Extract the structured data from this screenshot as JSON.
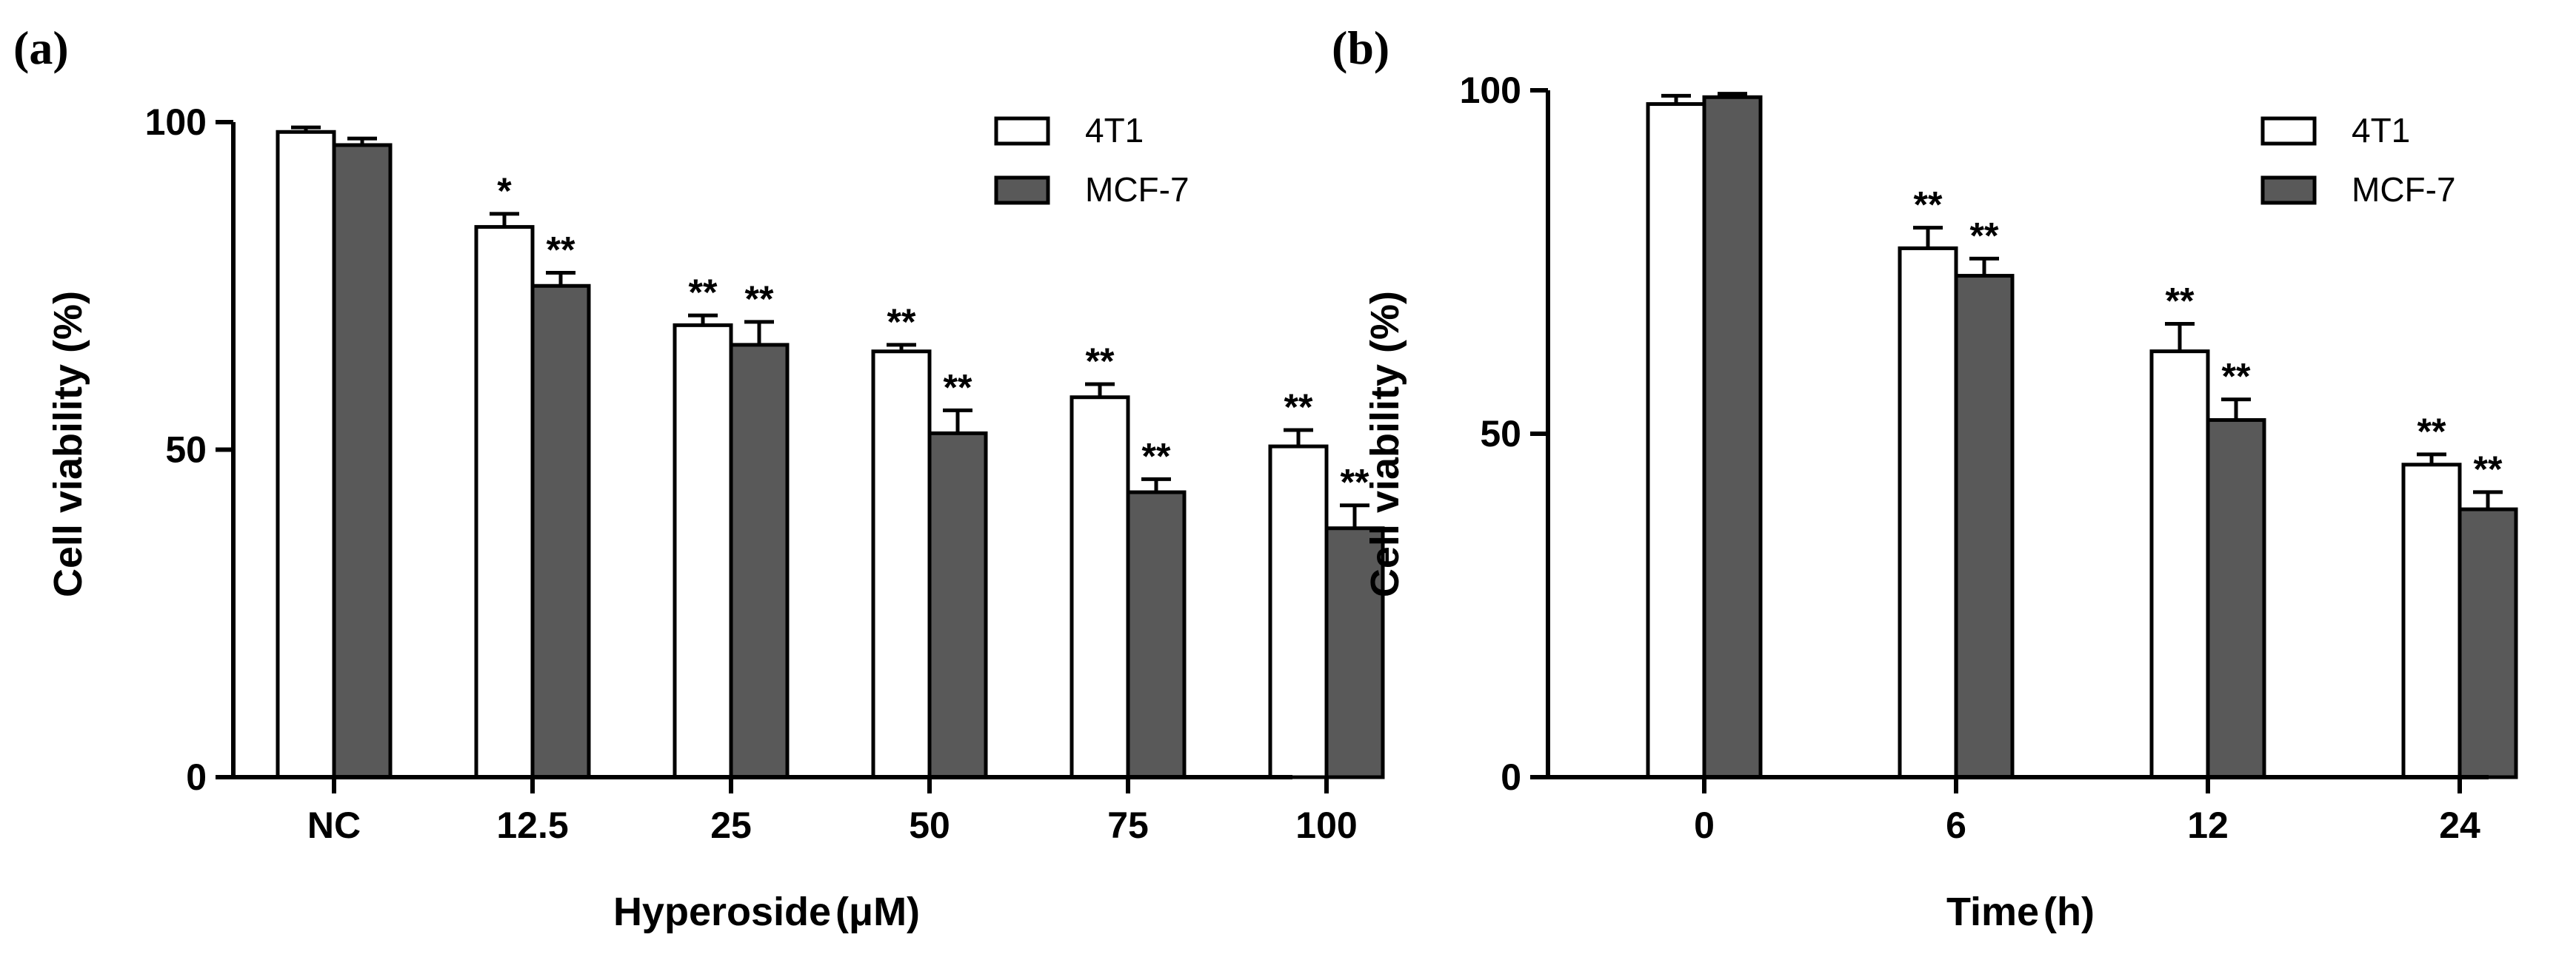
{
  "chart_data": [
    {
      "panel_label": "(a)",
      "type": "bar",
      "categories": [
        "NC",
        "12.5",
        "25",
        "50",
        "75",
        "100"
      ],
      "xlabel": "Hyperoside",
      "xlabel_unit": "(μM)",
      "ylabel": "Cell viability (%)",
      "ylim": [
        0,
        100
      ],
      "yticks": [
        "0",
        "50",
        "100"
      ],
      "legend": "top-right",
      "series": [
        {
          "name": "4T1",
          "color": "#ffffff",
          "values": [
            98.5,
            84,
            69,
            65,
            58,
            50.5
          ],
          "errors": [
            0.7,
            2,
            1.5,
            1,
            2,
            2.5
          ],
          "significance": [
            "",
            "*",
            "**",
            "**",
            "**",
            "**"
          ]
        },
        {
          "name": "MCF-7",
          "color": "#595959",
          "values": [
            96.5,
            75,
            66,
            52.5,
            43.5,
            38
          ],
          "errors": [
            1,
            2,
            3.5,
            3.5,
            2,
            3.5
          ],
          "significance": [
            "",
            "**",
            "**",
            "**",
            "**",
            "**"
          ]
        }
      ]
    },
    {
      "panel_label": "(b)",
      "type": "bar",
      "categories": [
        "0",
        "6",
        "12",
        "24"
      ],
      "xlabel": "Time",
      "xlabel_unit": "(h)",
      "ylabel": "Cell viability (%)",
      "ylim": [
        0,
        100
      ],
      "yticks": [
        "0",
        "50",
        "100"
      ],
      "legend": "top-right",
      "series": [
        {
          "name": "4T1",
          "color": "#ffffff",
          "values": [
            98,
            77,
            62,
            45.5
          ],
          "errors": [
            1.2,
            3,
            4,
            1.5
          ],
          "significance": [
            "",
            "**",
            "**",
            "**"
          ]
        },
        {
          "name": "MCF-7",
          "color": "#595959",
          "values": [
            99,
            73,
            52,
            39
          ],
          "errors": [
            0.5,
            2.5,
            3,
            2.5
          ],
          "significance": [
            "",
            "**",
            "**",
            "**"
          ]
        }
      ]
    }
  ]
}
